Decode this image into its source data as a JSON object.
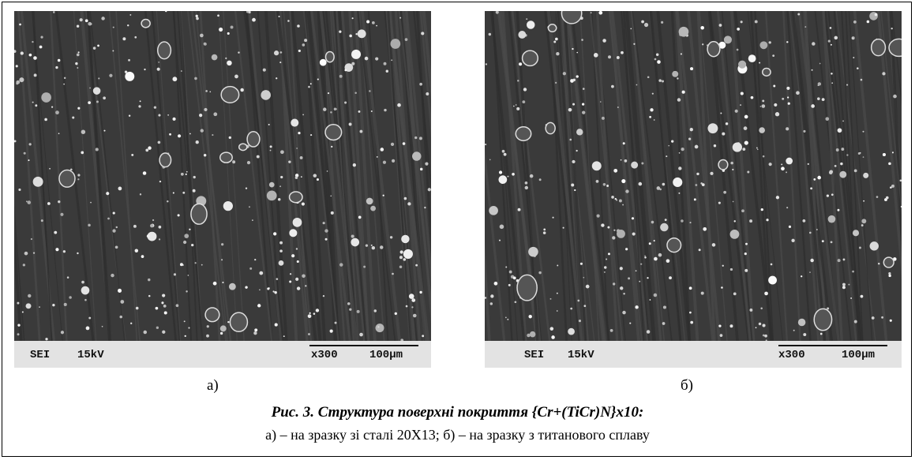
{
  "figures": [
    {
      "info_bar": {
        "mode": "SEI",
        "voltage": "15kV",
        "magnification": "x300",
        "scale": "100µm"
      },
      "label": "а)"
    },
    {
      "info_bar": {
        "mode": "SEI",
        "voltage": "15kV",
        "magnification": "x300",
        "scale": "100µm"
      },
      "label": "б)"
    }
  ],
  "caption": {
    "title": "Рис. 3. Структура поверхні покриття {Cr+(TiCr)N}x10:",
    "subtitle": "а) – на зразку зі сталі 20Х13; б) – на зразку з титанового сплаву"
  }
}
